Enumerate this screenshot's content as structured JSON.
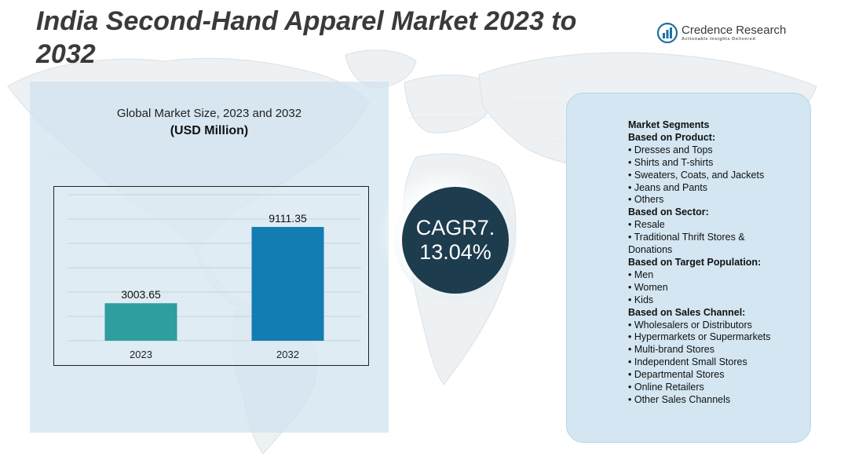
{
  "page": {
    "title": "India Second-Hand Apparel Market 2023 to 2032"
  },
  "logo": {
    "name": "Credence Research",
    "tagline": "Actionable Insights Delivered",
    "icon": "bar-chart-circle-icon"
  },
  "chart_panel": {
    "title": "Global Market Size, 2023 and 2032",
    "unit": "(USD Million)"
  },
  "chart_data": {
    "type": "bar",
    "categories": [
      "2023",
      "2032"
    ],
    "values": [
      3003.65,
      9111.35
    ],
    "value_labels": [
      "3003.65",
      "9111.35"
    ],
    "colors": [
      "#2e9e9e",
      "#127db3"
    ],
    "ylim": [
      0,
      10000
    ],
    "grid": true,
    "legend": "none"
  },
  "cagr": {
    "line1": "CAGR7.",
    "line2": "13.04%"
  },
  "segments": {
    "items": [
      {
        "text": "Market Segments",
        "heading": true
      },
      {
        "text": "Based on Product:",
        "heading": true
      },
      {
        "text": "• Dresses and Tops",
        "heading": false
      },
      {
        "text": "• Shirts and T-shirts",
        "heading": false
      },
      {
        "text": "• Sweaters, Coats, and Jackets",
        "heading": false
      },
      {
        "text": "• Jeans and Pants",
        "heading": false
      },
      {
        "text": "• Others",
        "heading": false
      },
      {
        "text": "Based on Sector:",
        "heading": true
      },
      {
        "text": "• Resale",
        "heading": false
      },
      {
        "text": "• Traditional Thrift Stores &",
        "heading": false
      },
      {
        "text": "Donations",
        "heading": false
      },
      {
        "text": "Based on Target Population:",
        "heading": true
      },
      {
        "text": "• Men",
        "heading": false
      },
      {
        "text": "• Women",
        "heading": false
      },
      {
        "text": "• Kids",
        "heading": false
      },
      {
        "text": "Based on Sales Channel:",
        "heading": true
      },
      {
        "text": "• Wholesalers or Distributors",
        "heading": false
      },
      {
        "text": "• Hypermarkets or Supermarkets",
        "heading": false
      },
      {
        "text": "• Multi-brand Stores",
        "heading": false
      },
      {
        "text": "• Independent Small Stores",
        "heading": false
      },
      {
        "text": "• Departmental Stores",
        "heading": false
      },
      {
        "text": "• Online Retailers",
        "heading": false
      },
      {
        "text": "• Other Sales Channels",
        "heading": false
      }
    ]
  }
}
